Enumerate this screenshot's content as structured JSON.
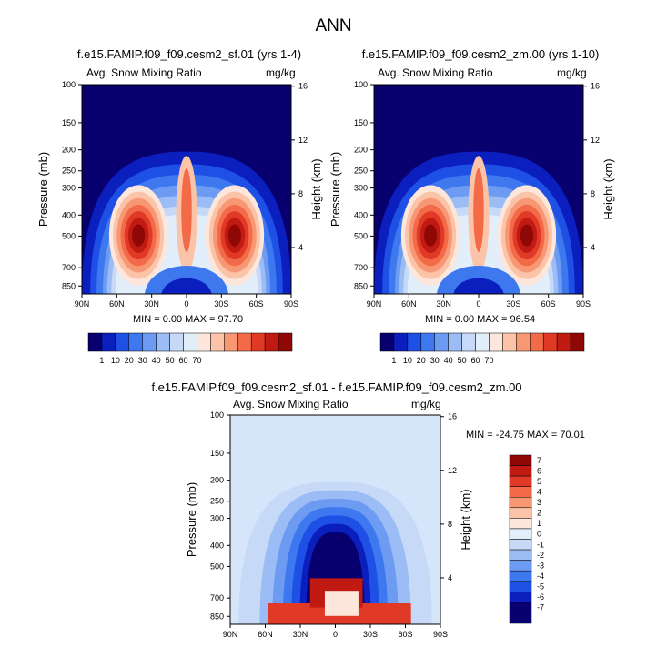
{
  "page_title": "ANN",
  "chart_data": [
    {
      "type": "heatmap",
      "title": "f.e15.FAMIP.f09_f09.cesm2_sf.01 (yrs 1-4)",
      "subtitle_left": "Avg. Snow Mixing Ratio",
      "subtitle_right": "mg/kg",
      "ylabel": "Pressure (mb)",
      "ylabel_right": "Height (km)",
      "x_ticks": [
        "90N",
        "60N",
        "30N",
        "0",
        "30S",
        "60S",
        "90S"
      ],
      "y_ticks": [
        "100",
        "150",
        "200",
        "250",
        "300",
        "400",
        "500",
        "700",
        "850"
      ],
      "y_ticks_right": [
        "16",
        "12",
        "8",
        "4"
      ],
      "stats": "MIN =  0.00  MAX = 97.70",
      "colorbar_levels": [
        "1",
        "10",
        "20",
        "30",
        "40",
        "50",
        "60",
        "70"
      ]
    },
    {
      "type": "heatmap",
      "title": "f.e15.FAMIP.f09_f09.cesm2_zm.00 (yrs 1-10)",
      "subtitle_left": "Avg. Snow Mixing Ratio",
      "subtitle_right": "mg/kg",
      "ylabel": "Pressure (mb)",
      "ylabel_right": "Height (km)",
      "x_ticks": [
        "90N",
        "60N",
        "30N",
        "0",
        "30S",
        "60S",
        "90S"
      ],
      "y_ticks": [
        "100",
        "150",
        "200",
        "250",
        "300",
        "400",
        "500",
        "700",
        "850"
      ],
      "y_ticks_right": [
        "16",
        "12",
        "8",
        "4"
      ],
      "stats": "MIN =  0.00  MAX = 96.54",
      "colorbar_levels": [
        "1",
        "10",
        "20",
        "30",
        "40",
        "50",
        "60",
        "70"
      ]
    },
    {
      "type": "heatmap",
      "title": "f.e15.FAMIP.f09_f09.cesm2_sf.01 - f.e15.FAMIP.f09_f09.cesm2_zm.00",
      "subtitle_left": "Avg. Snow Mixing Ratio",
      "subtitle_right": "mg/kg",
      "ylabel": "Pressure (mb)",
      "ylabel_right": "Height (km)",
      "x_ticks": [
        "90N",
        "60N",
        "30N",
        "0",
        "30S",
        "60S",
        "90S"
      ],
      "y_ticks": [
        "100",
        "150",
        "200",
        "250",
        "300",
        "400",
        "500",
        "700",
        "850"
      ],
      "y_ticks_right": [
        "16",
        "12",
        "8",
        "4"
      ],
      "stats": "MIN = -24.75  MAX = 70.01",
      "colorbar_levels": [
        "7",
        "6",
        "5",
        "4",
        "3",
        "2",
        "1",
        "0",
        "-1",
        "-2",
        "-3",
        "-4",
        "-5",
        "-6",
        "-7"
      ]
    }
  ],
  "colors": {
    "blues": [
      "#08006e",
      "#0a1fbe",
      "#1e50e6",
      "#3d78ee",
      "#6e9bf2",
      "#9cbcf5",
      "#c6daf8",
      "#e3eefb"
    ],
    "reds": [
      "#fde7dc",
      "#fbc3a7",
      "#f79774",
      "#f26a48",
      "#e03a26",
      "#c11a12",
      "#8f0805"
    ],
    "bg_panel": "#08006e",
    "bg_diff": "#d6e6fa"
  }
}
